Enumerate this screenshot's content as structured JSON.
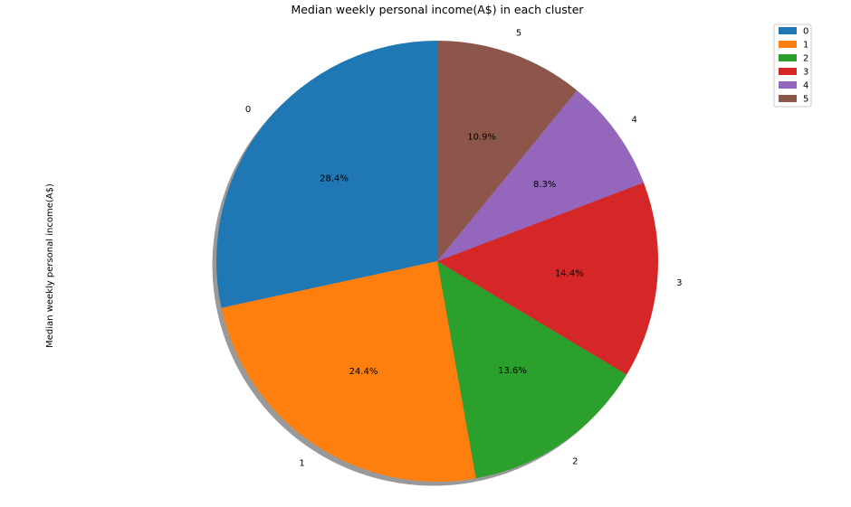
{
  "chart_data": {
    "type": "pie",
    "title": "Median weekly personal income(A$) in each cluster",
    "ylabel": "Median weekly personal income(A$)",
    "categories": [
      "0",
      "1",
      "2",
      "3",
      "4",
      "5"
    ],
    "values": [
      28.4,
      24.4,
      13.6,
      14.4,
      8.3,
      10.9
    ],
    "percent_labels": [
      "28.4%",
      "24.4%",
      "13.6%",
      "14.4%",
      "8.3%",
      "10.9%"
    ],
    "colors": [
      "#1f77b4",
      "#ff7f0e",
      "#2ca02c",
      "#d62728",
      "#9467bd",
      "#8c564b"
    ],
    "start_angle_deg": 90,
    "direction": "counterclockwise",
    "shadow": true,
    "legend": {
      "placement": "top-right",
      "entries": [
        "0",
        "1",
        "2",
        "3",
        "4",
        "5"
      ]
    }
  }
}
